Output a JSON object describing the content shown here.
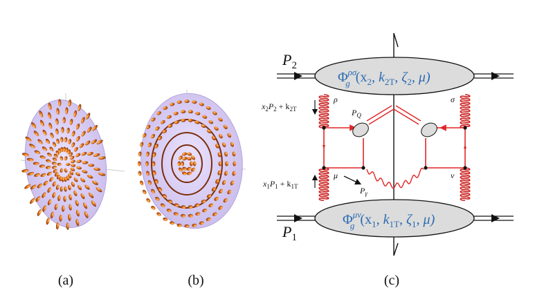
{
  "panel_a": {
    "caption": "(a)"
  },
  "panel_b": {
    "caption": "(b)"
  },
  "panel_c": {
    "caption": "(c)",
    "proton_top": {
      "letter": "P",
      "sub": "2"
    },
    "proton_bottom": {
      "letter": "P",
      "sub": "1"
    },
    "blob_top": {
      "phi": "Φ",
      "sup": "ρσ",
      "sub": "g",
      "args": "(x",
      "a1": "2",
      "a2": ", k",
      "a3": "2T",
      "a4": ", ζ",
      "a5": "2",
      "a6": ", μ)"
    },
    "blob_bottom": {
      "phi": "Φ",
      "sup": "μν",
      "sub": "g",
      "args": "(x",
      "a1": "1",
      "a2": ", k",
      "a3": "1T",
      "a4": ", ζ",
      "a5": "1",
      "a6": ", μ)"
    },
    "mom_top": {
      "a": "x",
      "b": "2",
      "c": "P",
      "d": "2",
      "e": " + k",
      "f": "2T"
    },
    "mom_bottom": {
      "a": "x",
      "b": "1",
      "c": "P",
      "d": "1",
      "e": " + k",
      "f": "1T"
    },
    "idx_rho": "ρ",
    "idx_sigma": "σ",
    "idx_mu": "μ",
    "idx_nu": "ν",
    "pq": {
      "letter": "P",
      "sub": "Q"
    },
    "pgamma": {
      "letter": "P",
      "sub": "γ"
    }
  },
  "colors": {
    "gluon": "#cc1f1f",
    "quark": "#e02424",
    "blob": "#dcdcdc",
    "blue_text": "#2b6cb0",
    "sphere": "#d8cdf0"
  }
}
